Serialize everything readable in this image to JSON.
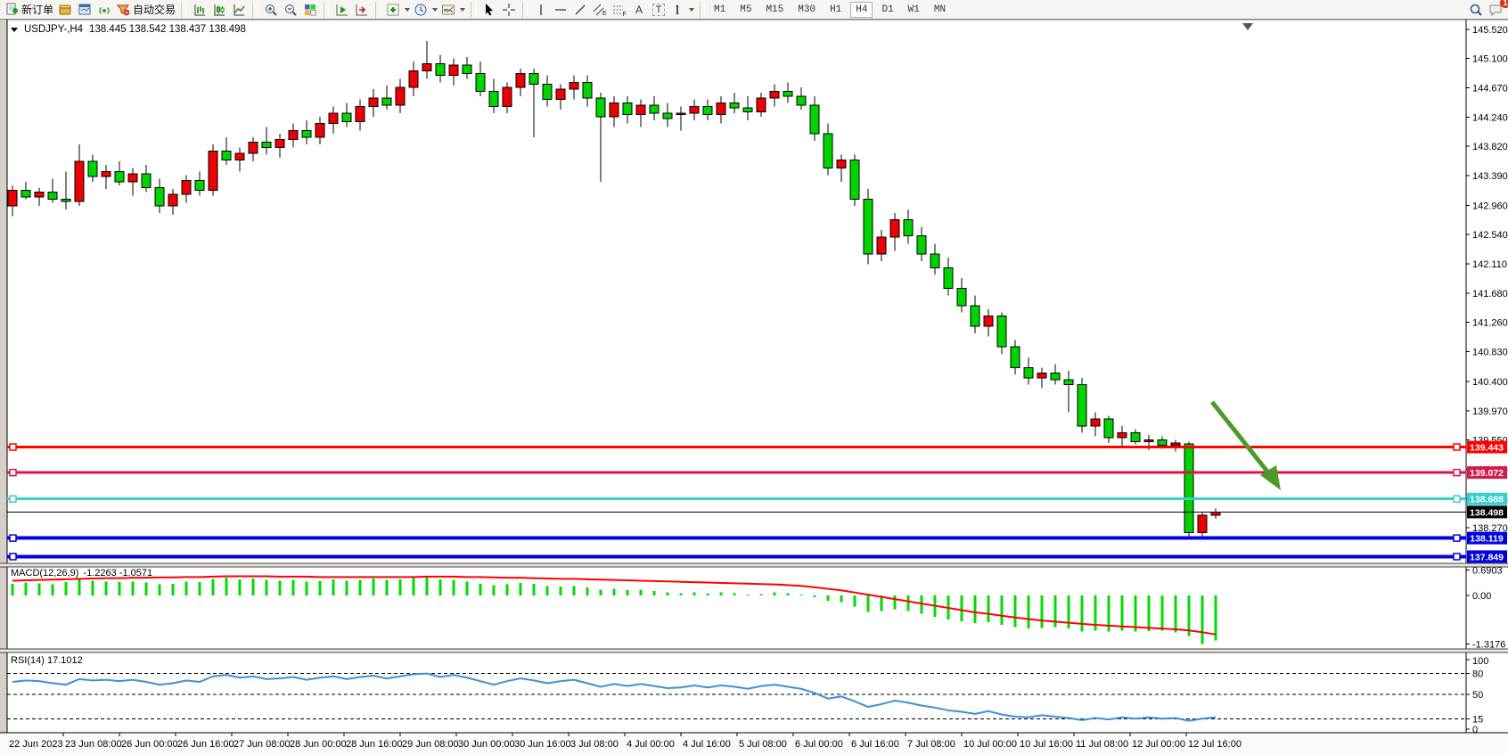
{
  "toolbar": {
    "new_order": {
      "label": "新订单"
    },
    "autotrading": {
      "label": "自动交易"
    },
    "icon_letters": {
      "a": "A",
      "t": "T",
      "e": "E",
      "f": "F"
    },
    "timeframes": {
      "items": [
        "M1",
        "M5",
        "M15",
        "M30",
        "H1",
        "H4",
        "D1",
        "W1",
        "MN"
      ],
      "active": "H4"
    },
    "notifications_badge": "1"
  },
  "chart": {
    "title": "USDJPY-,H4",
    "ohlc": "138.445 138.542 138.437 138.498"
  },
  "price_axis": {
    "ticks": [
      "145.520",
      "145.100",
      "144.670",
      "144.240",
      "143.820",
      "143.390",
      "142.960",
      "142.540",
      "142.110",
      "141.680",
      "141.260",
      "140.830",
      "140.400",
      "139.970",
      "139.550",
      "139.120",
      "138.690",
      "138.270"
    ]
  },
  "hlines": [
    {
      "price": 139.443,
      "label": "139.443",
      "color": "#FE0000",
      "width": 3
    },
    {
      "price": 139.072,
      "label": "139.072",
      "color": "#D6184C",
      "width": 3
    },
    {
      "price": 138.688,
      "label": "138.688",
      "color": "#38CFCF",
      "width": 3
    },
    {
      "price": 138.119,
      "label": "138.119",
      "color": "#0000E0",
      "width": 4
    },
    {
      "price": 137.849,
      "label": "137.849",
      "color": "#0000E0",
      "width": 4
    }
  ],
  "current_price": {
    "price": 138.498,
    "label": "138.498",
    "color": "#000000"
  },
  "indicators": {
    "macd": {
      "label": "MACD(12,26,9)",
      "values": "-1.2263 -1.0571",
      "axis_labels": [
        "0.6903",
        "0.00",
        "-1.3176"
      ],
      "axis_values": [
        0.6903,
        0,
        -1.3176
      ]
    },
    "rsi": {
      "label": "RSI(14) 17.1012",
      "axis_labels": [
        "100",
        "80",
        "50",
        "15",
        "0"
      ],
      "axis_values": [
        100,
        80,
        50,
        15,
        0
      ],
      "levels": [
        80,
        50,
        15
      ]
    }
  },
  "time_axis": {
    "labels": [
      "22 Jun 2023",
      "23 Jun 08:00",
      "26 Jun 00:00",
      "26 Jun 16:00",
      "27 Jun 08:00",
      "28 Jun 00:00",
      "28 Jun 16:00",
      "29 Jun 08:00",
      "30 Jun 00:00",
      "30 Jun 16:00",
      "3 Jul 08:00",
      "4 Jul 00:00",
      "4 Jul 16:00",
      "5 Jul 08:00",
      "6 Jul 00:00",
      "6 Jul 16:00",
      "7 Jul 08:00",
      "10 Jul 00:00",
      "10 Jul 16:00",
      "11 Jul 08:00",
      "12 Jul 00:00",
      "12 Jul 16:00"
    ]
  },
  "annotation_arrow": {
    "color": "#4C9A2A"
  },
  "chart_data": {
    "type": "candlestick",
    "symbol": "USDJPY-",
    "timeframe": "H4",
    "price_range": [
      137.75,
      145.62
    ],
    "colors": {
      "bull": "#EE0000",
      "bear": "#00D400",
      "wick": "#000000",
      "macd_hist": "#00DC00",
      "macd_signal": "#FF0000",
      "rsi_line": "#3E8FD8"
    },
    "candles": [
      [
        142.95,
        143.25,
        142.8,
        143.18
      ],
      [
        143.18,
        143.3,
        143.05,
        143.08
      ],
      [
        143.08,
        143.22,
        142.95,
        143.15
      ],
      [
        143.15,
        143.35,
        143.0,
        143.05
      ],
      [
        143.05,
        143.45,
        142.9,
        143.02
      ],
      [
        143.02,
        143.85,
        142.95,
        143.6
      ],
      [
        143.6,
        143.7,
        143.3,
        143.38
      ],
      [
        143.38,
        143.55,
        143.2,
        143.45
      ],
      [
        143.45,
        143.6,
        143.25,
        143.3
      ],
      [
        143.3,
        143.5,
        143.1,
        143.42
      ],
      [
        143.42,
        143.55,
        143.15,
        143.22
      ],
      [
        143.22,
        143.35,
        142.85,
        142.95
      ],
      [
        142.95,
        143.2,
        142.82,
        143.12
      ],
      [
        143.12,
        143.4,
        143.0,
        143.32
      ],
      [
        143.32,
        143.45,
        143.1,
        143.18
      ],
      [
        143.18,
        143.85,
        143.1,
        143.75
      ],
      [
        143.75,
        143.95,
        143.55,
        143.62
      ],
      [
        143.62,
        143.8,
        143.45,
        143.72
      ],
      [
        143.72,
        143.95,
        143.6,
        143.88
      ],
      [
        143.88,
        144.1,
        143.7,
        143.8
      ],
      [
        143.8,
        144.0,
        143.65,
        143.92
      ],
      [
        143.92,
        144.15,
        143.8,
        144.05
      ],
      [
        144.05,
        144.2,
        143.85,
        143.95
      ],
      [
        143.95,
        144.25,
        143.85,
        144.15
      ],
      [
        144.15,
        144.4,
        144.0,
        144.3
      ],
      [
        144.3,
        144.45,
        144.1,
        144.18
      ],
      [
        144.18,
        144.5,
        144.05,
        144.4
      ],
      [
        144.4,
        144.65,
        144.25,
        144.52
      ],
      [
        144.52,
        144.7,
        144.35,
        144.42
      ],
      [
        144.42,
        144.8,
        144.3,
        144.68
      ],
      [
        144.68,
        145.05,
        144.55,
        144.92
      ],
      [
        144.92,
        145.35,
        144.8,
        145.02
      ],
      [
        145.02,
        145.15,
        144.75,
        144.85
      ],
      [
        144.85,
        145.1,
        144.7,
        145.0
      ],
      [
        145.0,
        145.12,
        144.8,
        144.88
      ],
      [
        144.88,
        145.05,
        144.55,
        144.62
      ],
      [
        144.62,
        144.8,
        144.3,
        144.4
      ],
      [
        144.4,
        144.75,
        144.3,
        144.68
      ],
      [
        144.68,
        144.95,
        144.55,
        144.88
      ],
      [
        144.88,
        144.95,
        143.95,
        144.72
      ],
      [
        144.72,
        144.85,
        144.4,
        144.5
      ],
      [
        144.5,
        144.72,
        144.35,
        144.65
      ],
      [
        144.65,
        144.85,
        144.5,
        144.75
      ],
      [
        144.75,
        144.85,
        144.4,
        144.52
      ],
      [
        144.52,
        144.6,
        143.3,
        144.25
      ],
      [
        144.25,
        144.55,
        144.1,
        144.45
      ],
      [
        144.45,
        144.55,
        144.15,
        144.28
      ],
      [
        144.28,
        144.5,
        144.1,
        144.42
      ],
      [
        144.42,
        144.55,
        144.2,
        144.3
      ],
      [
        144.3,
        144.45,
        144.1,
        144.22
      ],
      [
        144.28,
        144.4,
        144.05,
        144.3
      ],
      [
        144.3,
        144.5,
        144.2,
        144.4
      ],
      [
        144.4,
        144.5,
        144.2,
        144.28
      ],
      [
        144.28,
        144.55,
        144.15,
        144.45
      ],
      [
        144.45,
        144.6,
        144.3,
        144.38
      ],
      [
        144.38,
        144.55,
        144.2,
        144.32
      ],
      [
        144.32,
        144.6,
        144.25,
        144.52
      ],
      [
        144.52,
        144.72,
        144.4,
        144.62
      ],
      [
        144.62,
        144.75,
        144.45,
        144.55
      ],
      [
        144.55,
        144.68,
        144.35,
        144.42
      ],
      [
        144.42,
        144.55,
        143.9,
        144.0
      ],
      [
        144.0,
        144.15,
        143.4,
        143.5
      ],
      [
        143.5,
        143.7,
        143.3,
        143.62
      ],
      [
        143.62,
        143.7,
        142.95,
        143.05
      ],
      [
        143.05,
        143.2,
        142.1,
        142.25
      ],
      [
        142.25,
        142.6,
        142.15,
        142.5
      ],
      [
        142.5,
        142.85,
        142.3,
        142.75
      ],
      [
        142.75,
        142.9,
        142.4,
        142.52
      ],
      [
        142.52,
        142.65,
        142.15,
        142.25
      ],
      [
        142.25,
        142.4,
        141.95,
        142.05
      ],
      [
        142.05,
        142.2,
        141.65,
        141.75
      ],
      [
        141.75,
        141.9,
        141.4,
        141.5
      ],
      [
        141.5,
        141.65,
        141.1,
        141.2
      ],
      [
        141.2,
        141.45,
        141.05,
        141.35
      ],
      [
        141.35,
        141.4,
        140.8,
        140.9
      ],
      [
        140.9,
        141.0,
        140.5,
        140.6
      ],
      [
        140.6,
        140.75,
        140.35,
        140.45
      ],
      [
        140.45,
        140.6,
        140.3,
        140.52
      ],
      [
        140.52,
        140.65,
        140.35,
        140.42
      ],
      [
        140.42,
        140.55,
        139.95,
        140.35
      ],
      [
        140.35,
        140.45,
        139.65,
        139.75
      ],
      [
        139.75,
        139.95,
        139.6,
        139.85
      ],
      [
        139.85,
        139.9,
        139.5,
        139.58
      ],
      [
        139.58,
        139.75,
        139.45,
        139.65
      ],
      [
        139.65,
        139.7,
        139.48,
        139.52
      ],
      [
        139.52,
        139.62,
        139.4,
        139.55
      ],
      [
        139.55,
        139.6,
        139.42,
        139.47
      ],
      [
        139.47,
        139.55,
        139.38,
        139.5
      ],
      [
        139.49,
        139.52,
        138.1,
        138.2
      ],
      [
        138.2,
        138.5,
        138.12,
        138.45
      ],
      [
        138.45,
        138.55,
        138.4,
        138.498
      ]
    ],
    "macd_histogram": [
      0.32,
      0.35,
      0.33,
      0.3,
      0.36,
      0.45,
      0.4,
      0.38,
      0.36,
      0.38,
      0.35,
      0.3,
      0.32,
      0.38,
      0.36,
      0.45,
      0.48,
      0.44,
      0.46,
      0.42,
      0.4,
      0.42,
      0.38,
      0.4,
      0.44,
      0.4,
      0.42,
      0.46,
      0.42,
      0.44,
      0.48,
      0.5,
      0.44,
      0.42,
      0.38,
      0.32,
      0.28,
      0.3,
      0.34,
      0.32,
      0.26,
      0.24,
      0.26,
      0.22,
      0.16,
      0.18,
      0.14,
      0.16,
      0.12,
      0.08,
      0.06,
      0.08,
      0.05,
      0.08,
      0.06,
      0.02,
      0.04,
      0.08,
      0.06,
      0.02,
      -0.05,
      -0.15,
      -0.18,
      -0.3,
      -0.45,
      -0.42,
      -0.38,
      -0.42,
      -0.5,
      -0.58,
      -0.65,
      -0.7,
      -0.75,
      -0.72,
      -0.8,
      -0.86,
      -0.9,
      -0.88,
      -0.86,
      -0.9,
      -0.98,
      -0.96,
      -0.98,
      -0.96,
      -0.98,
      -0.97,
      -0.96,
      -1.0,
      -1.1,
      -1.3176,
      -1.2263
    ],
    "macd_signal": [
      0.4,
      0.41,
      0.42,
      0.43,
      0.44,
      0.45,
      0.46,
      0.47,
      0.47,
      0.48,
      0.48,
      0.49,
      0.49,
      0.5,
      0.5,
      0.51,
      0.52,
      0.52,
      0.52,
      0.52,
      0.51,
      0.51,
      0.51,
      0.5,
      0.5,
      0.5,
      0.5,
      0.5,
      0.5,
      0.5,
      0.5,
      0.51,
      0.51,
      0.51,
      0.5,
      0.5,
      0.49,
      0.48,
      0.48,
      0.47,
      0.46,
      0.45,
      0.45,
      0.44,
      0.43,
      0.42,
      0.41,
      0.4,
      0.39,
      0.38,
      0.37,
      0.36,
      0.35,
      0.34,
      0.33,
      0.32,
      0.31,
      0.3,
      0.28,
      0.26,
      0.22,
      0.18,
      0.14,
      0.08,
      0.02,
      -0.04,
      -0.1,
      -0.16,
      -0.22,
      -0.28,
      -0.34,
      -0.4,
      -0.46,
      -0.5,
      -0.55,
      -0.6,
      -0.64,
      -0.68,
      -0.71,
      -0.74,
      -0.77,
      -0.8,
      -0.82,
      -0.84,
      -0.86,
      -0.88,
      -0.9,
      -0.92,
      -0.95,
      -1.0,
      -1.0571
    ],
    "rsi": [
      68,
      70,
      69,
      66,
      64,
      72,
      70,
      71,
      69,
      71,
      68,
      64,
      66,
      70,
      68,
      76,
      78,
      74,
      76,
      72,
      73,
      75,
      71,
      74,
      76,
      72,
      75,
      77,
      73,
      76,
      79,
      80,
      75,
      78,
      74,
      69,
      64,
      69,
      73,
      70,
      66,
      69,
      71,
      66,
      61,
      65,
      62,
      65,
      62,
      59,
      60,
      63,
      60,
      63,
      61,
      58,
      62,
      64,
      61,
      58,
      52,
      44,
      47,
      40,
      32,
      36,
      41,
      38,
      34,
      31,
      27,
      25,
      22,
      26,
      21,
      18,
      17,
      20,
      18,
      16,
      13,
      16,
      14,
      17,
      15,
      17,
      15,
      16,
      12,
      15,
      17.1
    ]
  }
}
